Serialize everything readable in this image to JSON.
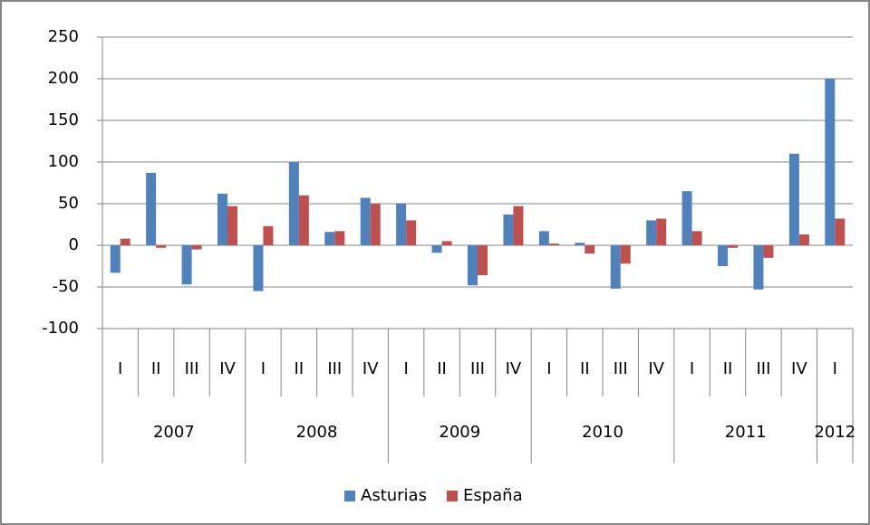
{
  "chart_data": {
    "type": "bar",
    "category_groups": [
      {
        "label": "2007",
        "categories": [
          "I",
          "II",
          "III",
          "IV"
        ]
      },
      {
        "label": "2008",
        "categories": [
          "I",
          "II",
          "III",
          "IV"
        ]
      },
      {
        "label": "2009",
        "categories": [
          "I",
          "II",
          "III",
          "IV"
        ]
      },
      {
        "label": "2010",
        "categories": [
          "I",
          "II",
          "III",
          "IV"
        ]
      },
      {
        "label": "2011",
        "categories": [
          "I",
          "II",
          "III",
          "IV"
        ]
      },
      {
        "label": "2012",
        "categories": [
          "I"
        ]
      }
    ],
    "series": [
      {
        "name": "Asturias",
        "color": "#4f81bd",
        "values": [
          -33,
          87,
          -47,
          62,
          -55,
          100,
          16,
          57,
          50,
          -9,
          -48,
          37,
          17,
          3,
          -52,
          30,
          65,
          -25,
          -53,
          110,
          200
        ]
      },
      {
        "name": "España",
        "color": "#c0504d",
        "values": [
          8,
          -3,
          -5,
          47,
          23,
          60,
          17,
          50,
          30,
          5,
          -36,
          47,
          2,
          -10,
          -22,
          32,
          17,
          -3,
          -15,
          13,
          32
        ]
      }
    ],
    "ylim": [
      -100,
      250
    ],
    "yticks": [
      -100,
      -50,
      0,
      50,
      100,
      150,
      200,
      250
    ],
    "grid": true,
    "legend": "bottom"
  }
}
